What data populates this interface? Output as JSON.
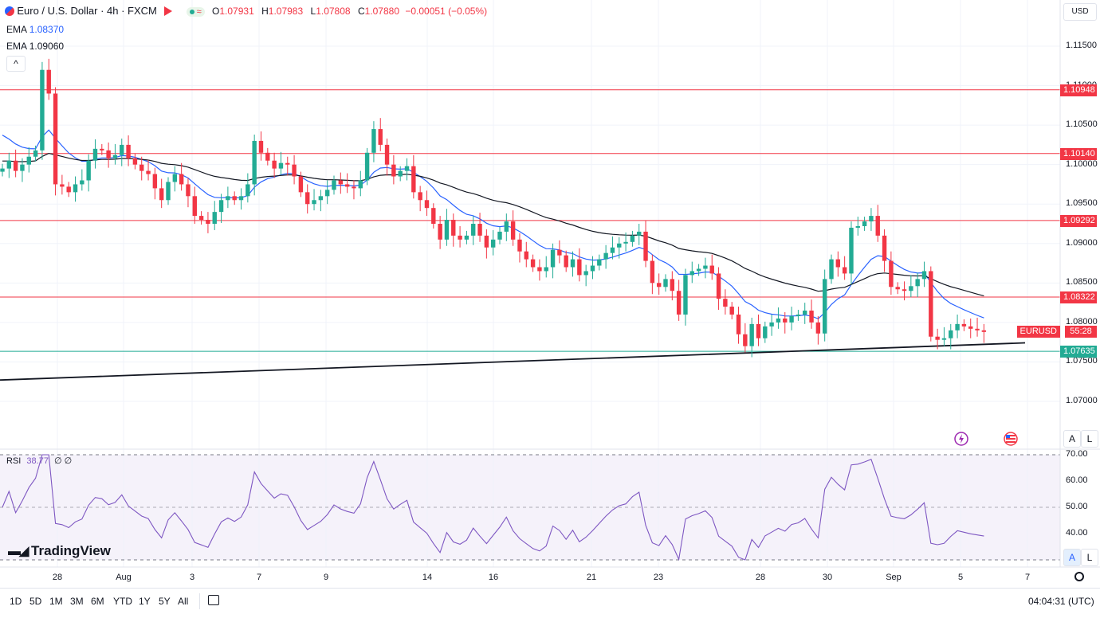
{
  "header": {
    "symbol_title": "Euro / U.S. Dollar · 4h · FXCM",
    "ohlc": {
      "o_label": "O",
      "o": "1.07931",
      "h_label": "H",
      "h": "1.07983",
      "l_label": "L",
      "l": "1.07808",
      "c_label": "C",
      "c": "1.07880",
      "change": "−0.00051 (−0.05%)"
    },
    "ema1_label": "EMA",
    "ema1_value": "1.08370",
    "ema2_label": "EMA",
    "ema2_value": "1.09060",
    "collapse_glyph": "^"
  },
  "currency_button": "USD",
  "price_axis": {
    "ticks": [
      "1.11500",
      "1.11000",
      "1.10500",
      "1.10000",
      "1.09500",
      "1.09000",
      "1.08500",
      "1.08000",
      "1.07500",
      "1.07000"
    ],
    "levels": [
      {
        "label": "1.10948",
        "value": 1.10948,
        "color": "#f23645"
      },
      {
        "label": "1.10140",
        "value": 1.1014,
        "color": "#f23645"
      },
      {
        "label": "1.09292",
        "value": 1.09292,
        "color": "#f23645"
      },
      {
        "label": "1.08322",
        "value": 1.08322,
        "color": "#f23645"
      },
      {
        "label": "1.07635",
        "value": 1.07635,
        "color": "#22ab94"
      }
    ],
    "symbol_tag": "EURUSD",
    "countdown": "55:28"
  },
  "rsi": {
    "label": "RSI",
    "value": "38.77",
    "extra1": "∅",
    "extra2": "∅",
    "ticks": [
      "70.00",
      "60.00",
      "50.00",
      "40.00"
    ]
  },
  "time_axis": [
    "28",
    "Aug",
    "3",
    "7",
    "9",
    "14",
    "16",
    "21",
    "23",
    "28",
    "30",
    "Sep",
    "5",
    "7"
  ],
  "toolbar": {
    "timeframes": [
      "1D",
      "5D",
      "1M",
      "3M",
      "6M",
      "YTD",
      "1Y",
      "5Y",
      "All"
    ],
    "clock": "04:04:31 (UTC)"
  },
  "side_buttons": {
    "auto": "A",
    "log": "L"
  },
  "brand": "TradingView",
  "colors": {
    "up": "#22ab94",
    "down": "#f23645",
    "ema_fast": "#2962ff",
    "ema_slow": "#131722",
    "rsi": "#7e57c2"
  },
  "chart_data": {
    "type": "candlestick",
    "timeframe": "4h",
    "ylim": [
      1.0655,
      1.1185
    ],
    "x_ticks": [
      "28",
      "Aug",
      "3",
      "7",
      "9",
      "14",
      "16",
      "21",
      "23",
      "28",
      "30",
      "Sep",
      "5",
      "7"
    ],
    "candles_close": [
      1.0995,
      1.1005,
      1.0992,
      1.1,
      1.101,
      1.1018,
      1.112,
      1.109,
      1.0975,
      1.0972,
      1.0965,
      1.0975,
      1.098,
      1.1005,
      1.102,
      1.1018,
      1.1008,
      1.1012,
      1.1025,
      1.1008,
      1.1,
      1.0992,
      1.0988,
      1.097,
      1.0955,
      1.0978,
      1.0988,
      1.0975,
      1.096,
      1.0935,
      1.093,
      1.0925,
      1.094,
      1.0955,
      1.096,
      1.0955,
      1.096,
      1.0975,
      1.103,
      1.1015,
      1.1005,
      1.0995,
      1.1002,
      1.1,
      1.0985,
      1.0965,
      1.095,
      1.0955,
      1.096,
      1.0968,
      1.098,
      1.0975,
      1.0972,
      1.097,
      1.098,
      1.1015,
      1.1045,
      1.1025,
      1.1,
      1.0985,
      1.0992,
      1.0998,
      1.0965,
      1.0955,
      1.0945,
      1.0925,
      1.0905,
      1.093,
      1.091,
      1.0905,
      1.091,
      1.0925,
      1.091,
      1.0895,
      1.0905,
      1.0915,
      1.0928,
      1.0905,
      1.089,
      1.088,
      1.087,
      1.0865,
      1.087,
      1.0892,
      1.0885,
      1.087,
      1.088,
      1.086,
      1.0865,
      1.0872,
      1.088,
      1.0888,
      1.0895,
      1.09,
      1.0902,
      1.091,
      1.0915,
      1.0878,
      1.085,
      1.0845,
      1.0855,
      1.084,
      1.081,
      1.086,
      1.0865,
      1.0868,
      1.0872,
      1.0862,
      1.083,
      1.082,
      1.081,
      1.0785,
      1.077,
      1.0798,
      1.078,
      1.0795,
      1.08,
      1.0805,
      1.08,
      1.0808,
      1.081,
      1.0815,
      1.08,
      1.0786,
      1.0855,
      1.088,
      1.087,
      1.0862,
      1.092,
      1.0922,
      1.0928,
      1.0935,
      1.091,
      1.0878,
      1.0845,
      1.0842,
      1.084,
      1.0846,
      1.0855,
      1.0865,
      1.0782,
      1.0778,
      1.078,
      1.079,
      1.0798,
      1.0795,
      1.0792,
      1.079,
      1.0788
    ],
    "ema_fast_value": 1.0837,
    "ema_slow_value": 1.0906,
    "horizontal_levels": [
      1.10948,
      1.1014,
      1.09292,
      1.08322,
      1.07635
    ],
    "trendline": [
      {
        "x_index": -30,
        "y": 1.0718
      },
      {
        "x_index": 180,
        "y": 1.0782
      }
    ],
    "rsi_value": 38.77,
    "rsi_ylim": [
      30,
      70
    ],
    "rsi_band": [
      30,
      70
    ]
  }
}
